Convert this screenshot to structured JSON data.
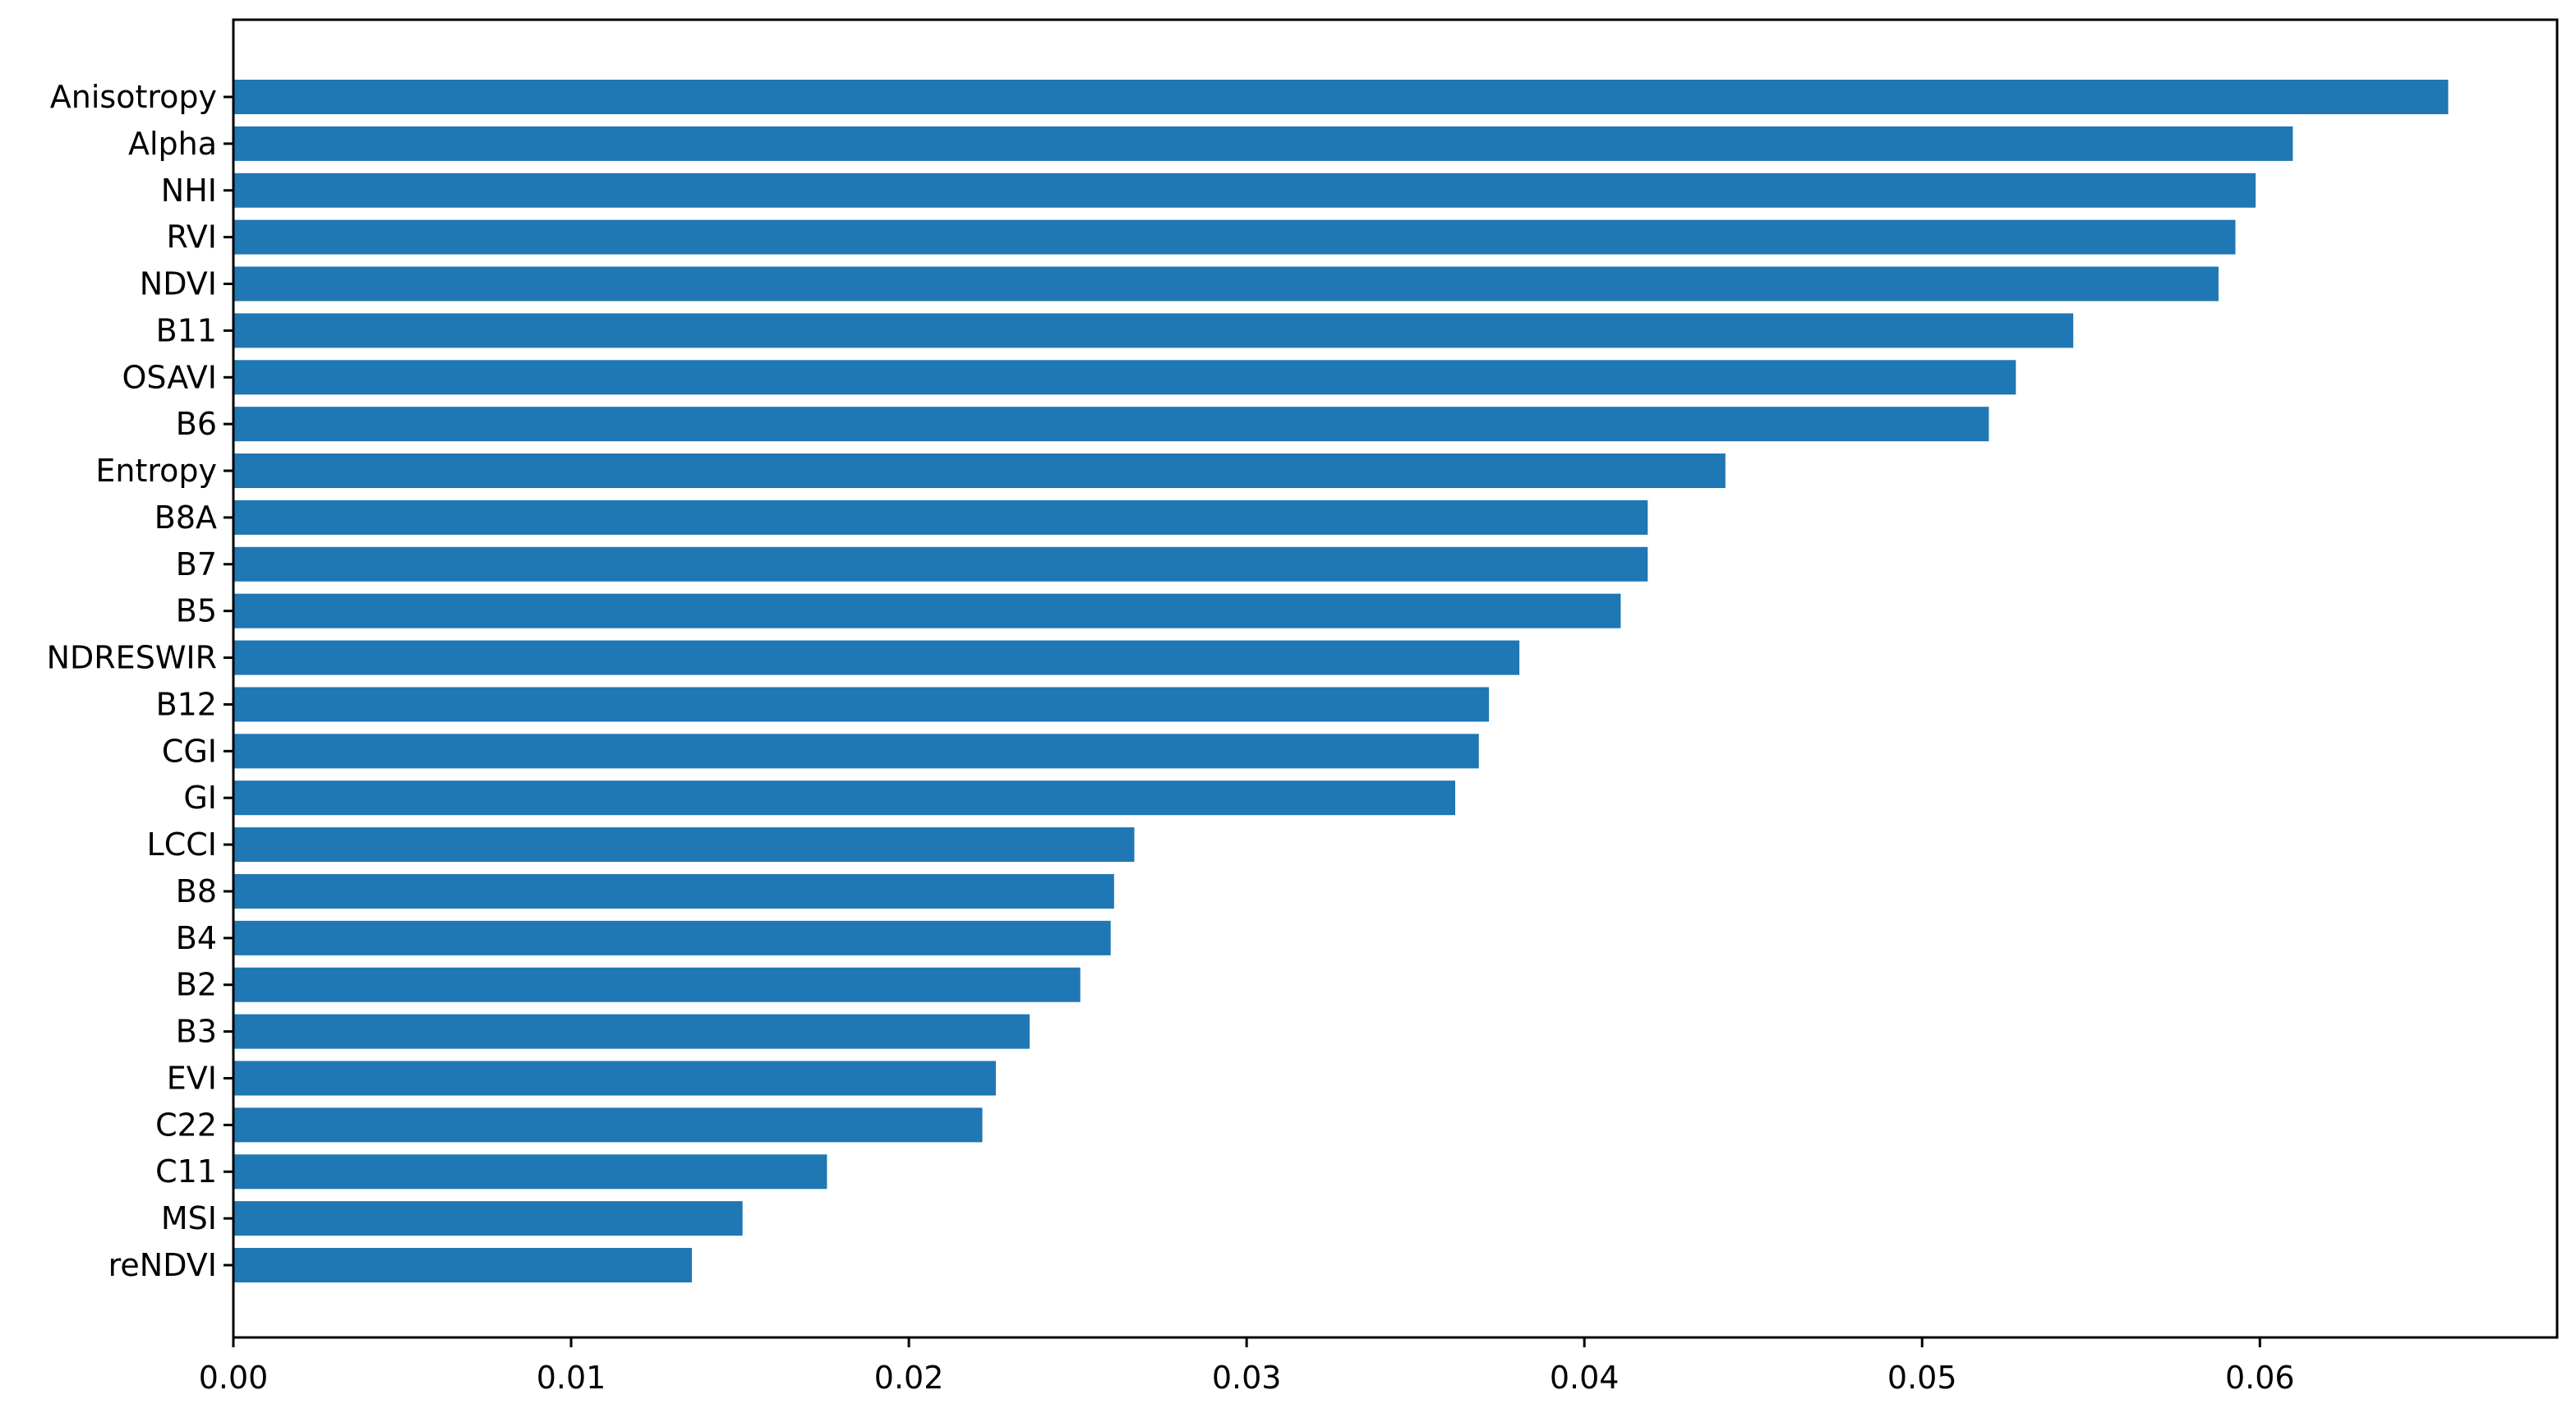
{
  "chart_data": {
    "type": "bar",
    "orientation": "horizontal",
    "title": "",
    "xlabel": "",
    "ylabel": "",
    "xlim": [
      0,
      0.0688
    ],
    "grid": false,
    "legend": "none",
    "bar_color": "#1f77b4",
    "xticks": [
      0.0,
      0.01,
      0.02,
      0.03,
      0.04,
      0.05,
      0.06
    ],
    "xtick_labels": [
      "0.00",
      "0.01",
      "0.02",
      "0.03",
      "0.04",
      "0.05",
      "0.06"
    ],
    "categories": [
      "Anisotropy",
      "Alpha",
      "NHI",
      "RVI",
      "NDVI",
      "B11",
      "OSAVI",
      "B6",
      "Entropy",
      "B8A",
      "B7",
      "B5",
      "NDRESWIR",
      "B12",
      "CGI",
      "GI",
      "LCCI",
      "B8",
      "B4",
      "B2",
      "B3",
      "EVI",
      "C22",
      "C11",
      "MSI",
      "reNDVI"
    ],
    "values": [
      0.0656,
      0.061,
      0.0599,
      0.0593,
      0.0588,
      0.0545,
      0.0528,
      0.052,
      0.0442,
      0.0419,
      0.0419,
      0.0411,
      0.0381,
      0.0372,
      0.0369,
      0.0362,
      0.0267,
      0.0261,
      0.026,
      0.0251,
      0.0236,
      0.0226,
      0.0222,
      0.0176,
      0.0151,
      0.0136
    ]
  }
}
